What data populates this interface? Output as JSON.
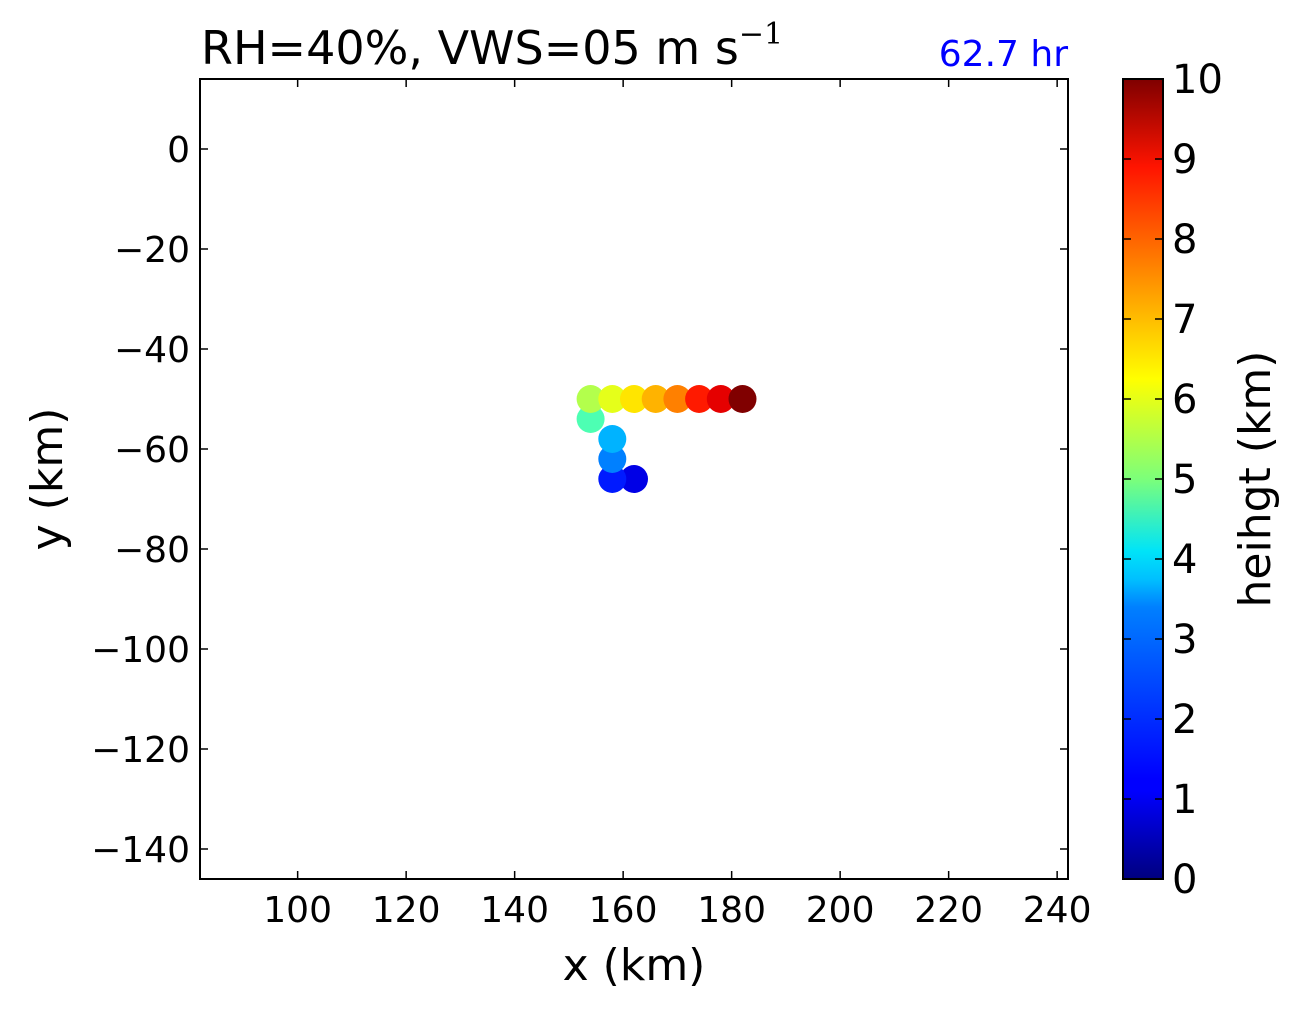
{
  "chart_data": {
    "type": "scatter",
    "title": "RH=40%, VWS=05 m s",
    "title_superscript": "−1",
    "time_label": "62.7 hr",
    "time_label_color": "#0000ff",
    "xlabel": "x (km)",
    "ylabel": "y (km)",
    "xlim": [
      82,
      242
    ],
    "ylim": [
      -146,
      14
    ],
    "xticks": [
      100,
      120,
      140,
      160,
      180,
      200,
      220,
      240
    ],
    "yticks": [
      0,
      -20,
      -40,
      -60,
      -80,
      -100,
      -120,
      -140
    ],
    "xtick_labels": [
      "100",
      "120",
      "140",
      "160",
      "180",
      "200",
      "220",
      "240"
    ],
    "ytick_labels": [
      "0",
      "−20",
      "−40",
      "−60",
      "−80",
      "−100",
      "−120",
      "−140"
    ],
    "grid": false,
    "colormap": "jet",
    "colorbar": {
      "label": "heihgt (km)",
      "range": [
        0,
        10
      ],
      "ticks": [
        0,
        1,
        2,
        3,
        4,
        5,
        6,
        7,
        8,
        9,
        10
      ],
      "tick_labels": [
        "0",
        "1",
        "2",
        "3",
        "4",
        "5",
        "6",
        "7",
        "8",
        "9",
        "10"
      ]
    },
    "points": [
      {
        "x": 162,
        "y": -66,
        "height": 1.0
      },
      {
        "x": 158,
        "y": -66,
        "height": 1.5
      },
      {
        "x": 158,
        "y": -62,
        "height": 2.5
      },
      {
        "x": 158,
        "y": -58,
        "height": 3.0
      },
      {
        "x": 154,
        "y": -54,
        "height": 4.5
      },
      {
        "x": 154,
        "y": -50,
        "height": 5.5
      },
      {
        "x": 158,
        "y": -50,
        "height": 6.0
      },
      {
        "x": 162,
        "y": -50,
        "height": 6.5
      },
      {
        "x": 166,
        "y": -50,
        "height": 7.0
      },
      {
        "x": 170,
        "y": -50,
        "height": 7.5
      },
      {
        "x": 174,
        "y": -50,
        "height": 8.5
      },
      {
        "x": 178,
        "y": -50,
        "height": 9.0
      },
      {
        "x": 182,
        "y": -50,
        "height": 10.0
      }
    ]
  }
}
